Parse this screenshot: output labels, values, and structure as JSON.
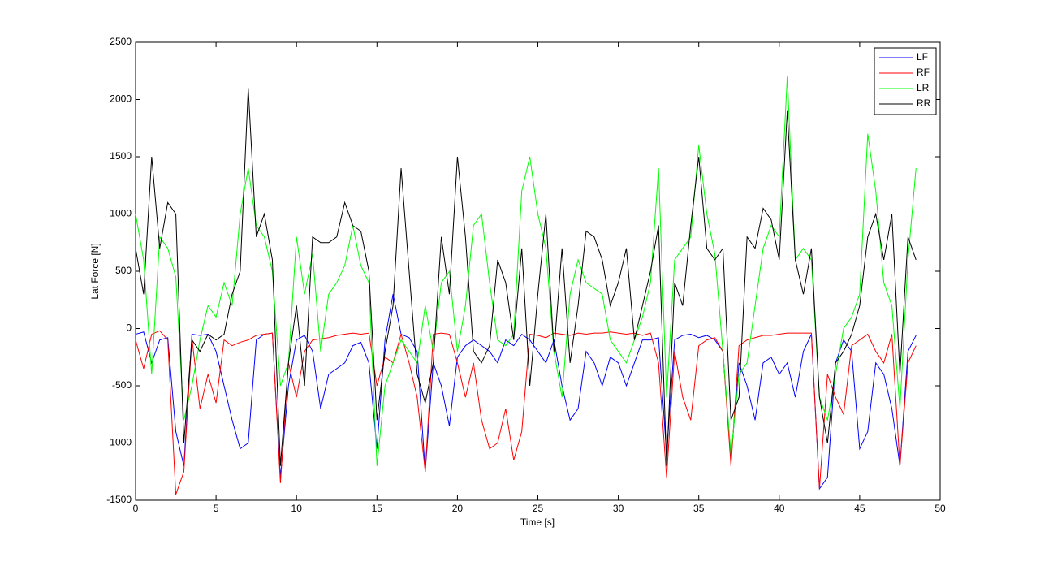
{
  "chart_data": {
    "type": "line",
    "xlabel": "Time [s]",
    "ylabel": "Lat Force [N]",
    "xlim": [
      0,
      50
    ],
    "ylim": [
      -1500,
      2500
    ],
    "xticks": [
      0,
      5,
      10,
      15,
      20,
      25,
      30,
      35,
      40,
      45,
      50
    ],
    "yticks": [
      -1500,
      -1000,
      -500,
      0,
      500,
      1000,
      1500,
      2000,
      2500
    ],
    "legend": "upper right",
    "x": [
      0,
      0.5,
      1,
      1.5,
      2,
      2.5,
      3,
      3.5,
      4,
      4.5,
      5,
      5.5,
      6,
      6.5,
      7,
      7.5,
      8,
      8.5,
      9,
      9.5,
      10,
      10.5,
      11,
      11.5,
      12,
      12.5,
      13,
      13.5,
      14,
      14.5,
      15,
      15.5,
      16,
      16.5,
      17,
      17.5,
      18,
      18.5,
      19,
      19.5,
      20,
      20.5,
      21,
      21.5,
      22,
      22.5,
      23,
      23.5,
      24,
      24.5,
      25,
      25.5,
      26,
      26.5,
      27,
      27.5,
      28,
      28.5,
      29,
      29.5,
      30,
      30.5,
      31,
      31.5,
      32,
      32.5,
      33,
      33.5,
      34,
      34.5,
      35,
      35.5,
      36,
      36.5,
      37,
      37.5,
      38,
      38.5,
      39,
      39.5,
      40,
      40.5,
      41,
      41.5,
      42,
      42.5,
      43,
      43.5,
      44,
      44.5,
      45,
      45.5,
      46,
      46.5,
      47,
      47.5,
      48,
      48.5
    ],
    "series": [
      {
        "name": "LF",
        "color": "#0000ff",
        "values": [
          -50,
          -30,
          -300,
          -100,
          -80,
          -900,
          -1200,
          -50,
          -60,
          -50,
          -200,
          -500,
          -800,
          -1050,
          -1000,
          -100,
          -50,
          -40,
          -1300,
          -500,
          -100,
          -60,
          -200,
          -700,
          -400,
          -350,
          -300,
          -150,
          -120,
          -300,
          -1050,
          -100,
          300,
          -50,
          -80,
          -200,
          -1250,
          -300,
          -500,
          -850,
          -250,
          -150,
          -100,
          -150,
          -200,
          -300,
          -100,
          -150,
          -50,
          -100,
          -200,
          -300,
          -100,
          -500,
          -800,
          -700,
          -200,
          -300,
          -500,
          -250,
          -300,
          -500,
          -300,
          -100,
          -100,
          -80,
          -1100,
          -100,
          -60,
          -50,
          -80,
          -60,
          -100,
          -200,
          -1150,
          -300,
          -500,
          -800,
          -300,
          -250,
          -400,
          -300,
          -600,
          -200,
          -50,
          -1400,
          -1300,
          -300,
          -100,
          -200,
          -1050,
          -900,
          -300,
          -400,
          -700,
          -1200,
          -200,
          -60
        ]
      },
      {
        "name": "RF",
        "color": "#ff0000",
        "values": [
          -100,
          -350,
          -50,
          -20,
          -100,
          -1450,
          -1250,
          -80,
          -700,
          -400,
          -650,
          -100,
          -150,
          -120,
          -100,
          -60,
          -50,
          -40,
          -1350,
          -300,
          -600,
          -200,
          -100,
          -90,
          -80,
          -60,
          -50,
          -40,
          -50,
          -40,
          -500,
          -250,
          -300,
          -50,
          -300,
          -600,
          -1250,
          -50,
          -40,
          -50,
          -300,
          -600,
          -300,
          -800,
          -1050,
          -1000,
          -700,
          -1150,
          -900,
          -50,
          -60,
          -80,
          -40,
          -50,
          -60,
          -40,
          -50,
          -40,
          -40,
          -30,
          -40,
          -50,
          -40,
          -60,
          -40,
          -300,
          -1300,
          -200,
          -600,
          -800,
          -150,
          -100,
          -80,
          -200,
          -1200,
          -150,
          -100,
          -80,
          -60,
          -60,
          -50,
          -40,
          -40,
          -40,
          -40,
          -1400,
          -400,
          -600,
          -750,
          -150,
          -100,
          -50,
          -200,
          -300,
          -50,
          -1200,
          -300,
          -150
        ]
      },
      {
        "name": "LR",
        "color": "#00ff00",
        "values": [
          1000,
          600,
          -400,
          800,
          700,
          450,
          -800,
          -500,
          -100,
          200,
          100,
          400,
          200,
          1000,
          1400,
          900,
          800,
          500,
          -500,
          -300,
          800,
          300,
          650,
          -200,
          300,
          400,
          550,
          900,
          550,
          400,
          -1200,
          -500,
          -300,
          -100,
          -200,
          -300,
          200,
          -200,
          400,
          500,
          -200,
          200,
          900,
          1000,
          400,
          -100,
          -150,
          -50,
          1200,
          1500,
          1000,
          700,
          -200,
          -600,
          300,
          600,
          400,
          350,
          300,
          -100,
          -200,
          -300,
          -100,
          100,
          400,
          1400,
          -600,
          600,
          700,
          800,
          1600,
          1000,
          650,
          -200,
          -1100,
          -400,
          -300,
          200,
          700,
          900,
          800,
          2200,
          600,
          700,
          600,
          -600,
          -800,
          -400,
          0,
          100,
          300,
          1700,
          1200,
          400,
          200,
          -700,
          600,
          1400
        ]
      },
      {
        "name": "RR",
        "color": "#000000",
        "values": [
          700,
          300,
          1500,
          700,
          1100,
          1000,
          -1000,
          -100,
          -200,
          -50,
          -100,
          -50,
          300,
          500,
          2100,
          800,
          1000,
          600,
          -1200,
          -300,
          200,
          -500,
          800,
          750,
          750,
          800,
          1100,
          900,
          850,
          500,
          -800,
          -200,
          200,
          1400,
          500,
          -400,
          -650,
          -300,
          800,
          300,
          1500,
          800,
          -200,
          -300,
          -150,
          600,
          400,
          -100,
          700,
          -500,
          300,
          1000,
          -200,
          700,
          -300,
          200,
          850,
          800,
          600,
          200,
          400,
          700,
          -100,
          200,
          500,
          900,
          -1200,
          400,
          200,
          900,
          1500,
          700,
          600,
          700,
          -800,
          -600,
          800,
          700,
          1050,
          950,
          600,
          1900,
          600,
          300,
          700,
          -600,
          -1000,
          -300,
          -200,
          -50,
          200,
          800,
          1000,
          600,
          1000,
          -400,
          800,
          600
        ]
      }
    ]
  }
}
